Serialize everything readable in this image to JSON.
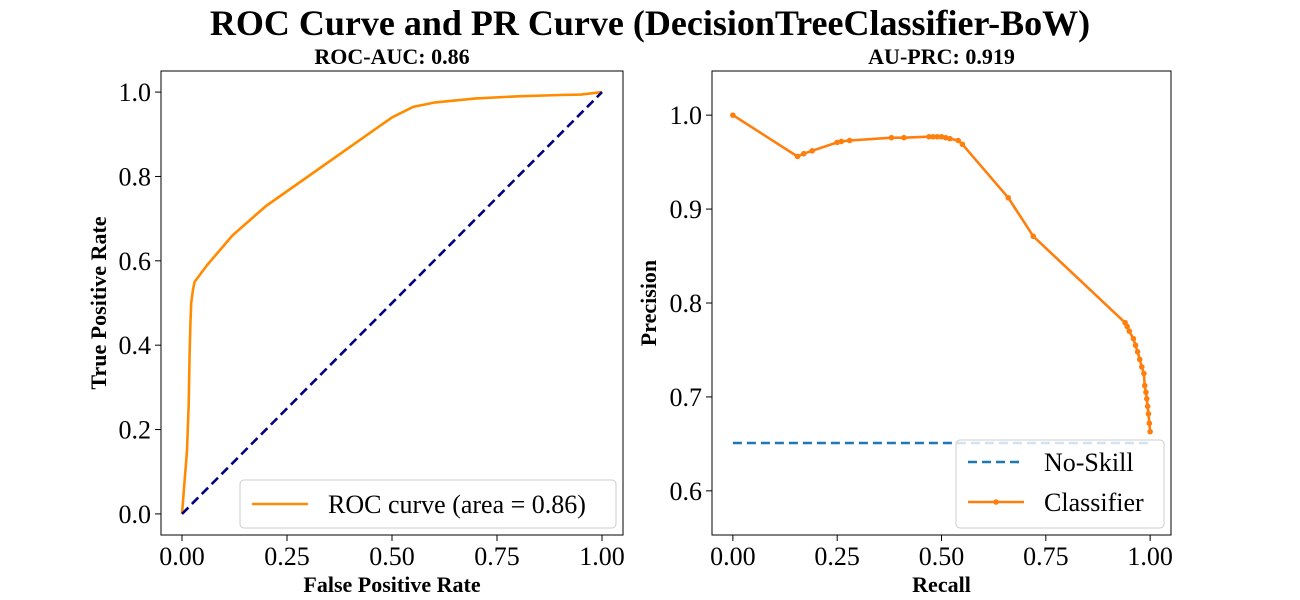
{
  "suptitle": "ROC Curve and PR Curve (DecisionTreeClassifier-BoW)",
  "chart_data": [
    {
      "type": "line",
      "title": "ROC-AUC: 0.86",
      "xlabel": "False Positive Rate",
      "ylabel": "True Positive Rate",
      "xlim": [
        -0.05,
        1.05
      ],
      "ylim": [
        -0.05,
        1.05
      ],
      "xticks": [
        0.0,
        0.25,
        0.5,
        0.75,
        1.0
      ],
      "xtick_labels": [
        "0.00",
        "0.25",
        "0.50",
        "0.75",
        "1.00"
      ],
      "yticks": [
        0.0,
        0.2,
        0.4,
        0.6,
        0.8,
        1.0
      ],
      "ytick_labels": [
        "0.0",
        "0.2",
        "0.4",
        "0.6",
        "0.8",
        "1.0"
      ],
      "grid": false,
      "legend_position": "lower-right",
      "series": [
        {
          "name": "ROC curve (area = 0.86)",
          "color": "#ff8c00",
          "style": "solid",
          "x": [
            0.0,
            0.012,
            0.016,
            0.018,
            0.02,
            0.022,
            0.026,
            0.03,
            0.06,
            0.12,
            0.2,
            0.3,
            0.4,
            0.5,
            0.55,
            0.6,
            0.7,
            0.8,
            0.9,
            0.95,
            1.0
          ],
          "y": [
            0.0,
            0.15,
            0.26,
            0.38,
            0.45,
            0.5,
            0.53,
            0.55,
            0.59,
            0.66,
            0.73,
            0.8,
            0.87,
            0.94,
            0.965,
            0.975,
            0.985,
            0.99,
            0.993,
            0.994,
            1.0
          ]
        },
        {
          "name": "",
          "color": "#000080",
          "style": "dashed",
          "x": [
            0.0,
            1.0
          ],
          "y": [
            0.0,
            1.0
          ]
        }
      ]
    },
    {
      "type": "line",
      "title": "AU-PRC: 0.919",
      "xlabel": "Recall",
      "ylabel": "Precision",
      "xlim": [
        -0.05,
        1.05
      ],
      "ylim": [
        0.553,
        1.047
      ],
      "xticks": [
        0.0,
        0.25,
        0.5,
        0.75,
        1.0
      ],
      "xtick_labels": [
        "0.00",
        "0.25",
        "0.50",
        "0.75",
        "1.00"
      ],
      "yticks": [
        0.6,
        0.7,
        0.8,
        0.9,
        1.0
      ],
      "ytick_labels": [
        "0.6",
        "0.7",
        "0.8",
        "0.9",
        "1.0"
      ],
      "grid": false,
      "legend_position": "lower-right",
      "series": [
        {
          "name": "No-Skill",
          "color": "#1f77b4",
          "style": "dashed",
          "x": [
            0.0,
            1.0
          ],
          "y": [
            0.651,
            0.651
          ]
        },
        {
          "name": "Classifier",
          "color": "#ff7f0e",
          "style": "solid-marker",
          "x": [
            0.0,
            0.155,
            0.17,
            0.19,
            0.25,
            0.26,
            0.28,
            0.38,
            0.41,
            0.47,
            0.48,
            0.49,
            0.5,
            0.51,
            0.52,
            0.54,
            0.55,
            0.66,
            0.72,
            0.94,
            0.945,
            0.95,
            0.96,
            0.965,
            0.97,
            0.975,
            0.98,
            0.985,
            0.987,
            0.99,
            0.992,
            0.994,
            0.996,
            0.998,
            1.0
          ],
          "y": [
            1.0,
            0.956,
            0.959,
            0.962,
            0.971,
            0.972,
            0.973,
            0.976,
            0.976,
            0.977,
            0.977,
            0.977,
            0.977,
            0.976,
            0.975,
            0.973,
            0.969,
            0.912,
            0.871,
            0.779,
            0.775,
            0.77,
            0.762,
            0.755,
            0.748,
            0.74,
            0.732,
            0.725,
            0.712,
            0.705,
            0.698,
            0.69,
            0.682,
            0.672,
            0.663
          ]
        }
      ]
    }
  ]
}
